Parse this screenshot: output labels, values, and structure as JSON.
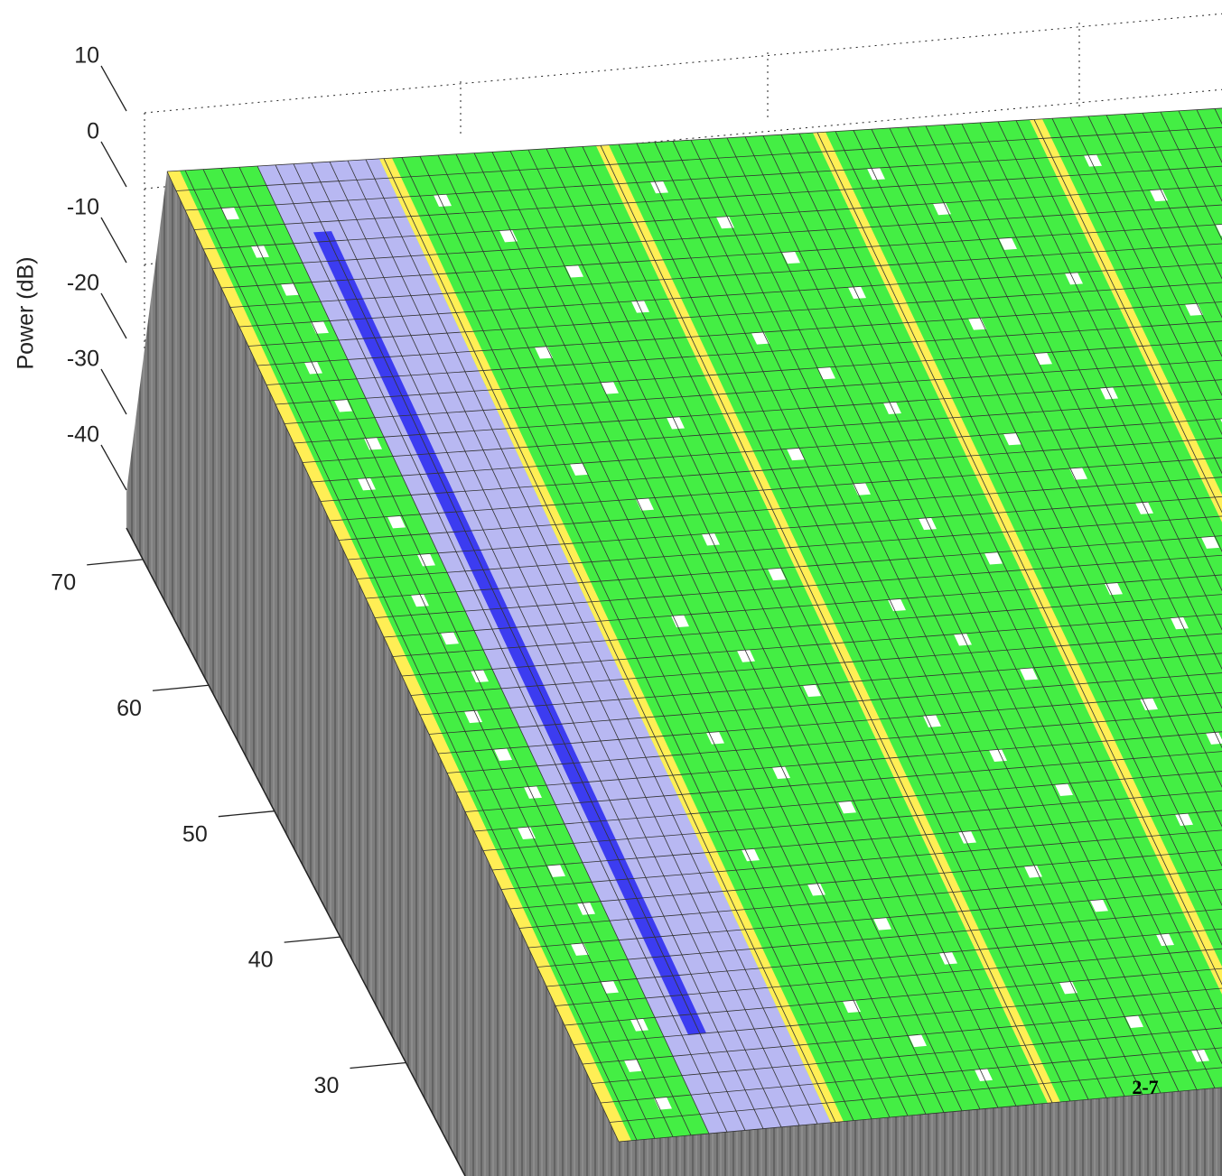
{
  "chart_data": {
    "type": "surface",
    "zlabel": "Power (dB)",
    "zlim": [
      -40,
      10
    ],
    "zticks": [
      10,
      0,
      -10,
      -20,
      -30,
      -40
    ],
    "ylim": [
      21,
      72.5
    ],
    "yticks": [
      70,
      60,
      50,
      40,
      30
    ],
    "annotation": "2-7"
  }
}
